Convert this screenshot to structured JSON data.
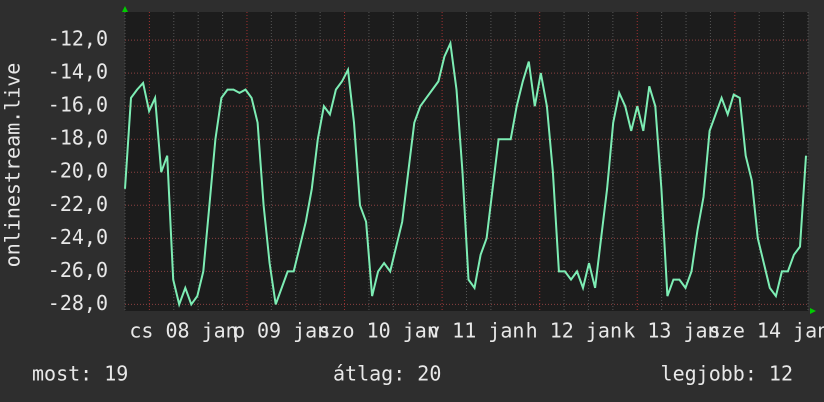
{
  "chart_data": {
    "type": "line",
    "y_axis_title": "onlinestream.live",
    "x_labels": [
      "cs 08 jan",
      "p 09 jan",
      "szo 10 jan",
      "v 11 jan",
      "h 12 jan",
      "k 13 jan",
      "sze 14 jan"
    ],
    "series": [
      {
        "color": "#7dedb4",
        "values": [
          -21,
          -15.5,
          -15,
          -14.6,
          -16.3,
          -15.5,
          -20,
          -19,
          -26.5,
          -28,
          -27,
          -28,
          -27.5,
          -26,
          -22,
          -18,
          -15.5,
          -15,
          -15,
          -15.2,
          -15,
          -15.5,
          -17,
          -22,
          -25.5,
          -28,
          -27,
          -26,
          -26,
          -24.5,
          -23,
          -21,
          -18,
          -16,
          -16.5,
          -15,
          -14.5,
          -13.8,
          -17,
          -22,
          -23,
          -27.5,
          -26,
          -25.5,
          -26,
          -24.5,
          -23,
          -20,
          -17,
          -16,
          -15.5,
          -15,
          -14.5,
          -13,
          -12.2,
          -15,
          -20,
          -26.5,
          -27,
          -25,
          -24,
          -21,
          -18,
          -18,
          -18,
          -16,
          -14.5,
          -13.3,
          -16,
          -14,
          -16,
          -20,
          -26,
          -26,
          -26.5,
          -26,
          -27,
          -25.5,
          -27,
          -24,
          -21,
          -17,
          -15.2,
          -16,
          -17.5,
          -16,
          -17.5,
          -14.8,
          -16,
          -21,
          -27.5,
          -26.5,
          -26.5,
          -27,
          -26,
          -23.5,
          -21.5,
          -17.5,
          -16.5,
          -15.5,
          -16.5,
          -15.3,
          -15.5,
          -19,
          -20.5,
          -24,
          -25.5,
          -27,
          -27.5,
          -26,
          -26,
          -25,
          -24.5,
          -19
        ]
      }
    ],
    "ylim": [
      -28.4,
      -10.3
    ],
    "yticks": [
      {
        "value": -28,
        "label": "-28,0"
      },
      {
        "value": -26,
        "label": "-26,0"
      },
      {
        "value": -24,
        "label": "-24,0"
      },
      {
        "value": -22,
        "label": "-22,0"
      },
      {
        "value": -20,
        "label": "-20,0"
      },
      {
        "value": -18,
        "label": "-18,0"
      },
      {
        "value": -16,
        "label": "-16,0"
      },
      {
        "value": -14,
        "label": "-14,0"
      },
      {
        "value": -12,
        "label": "-12,0"
      }
    ],
    "grid": true,
    "footer": {
      "current": "most: 19",
      "average": "átlag: 20",
      "best": "legjobb: 12"
    }
  }
}
